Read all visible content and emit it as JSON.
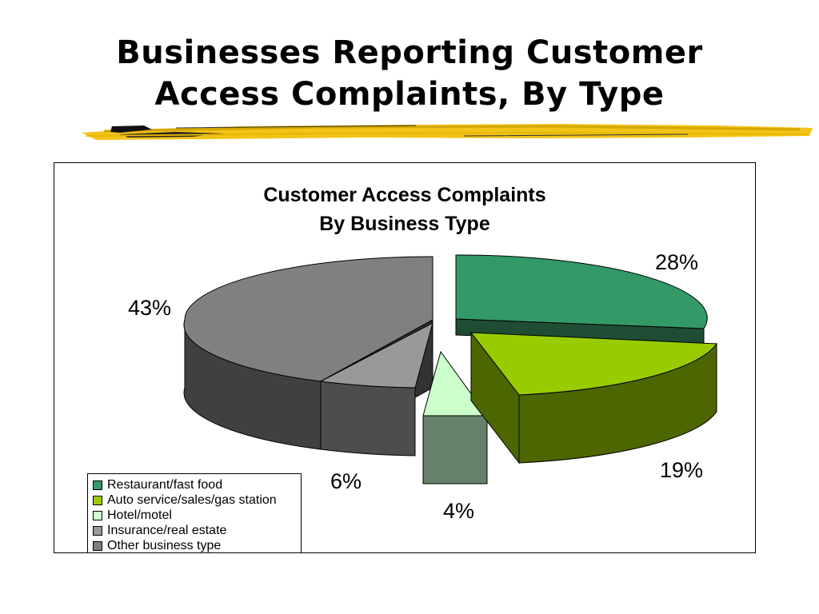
{
  "slide": {
    "title_line1": "Businesses Reporting Customer",
    "title_line2": "Access Complaints, By Type"
  },
  "chart_data": {
    "type": "pie",
    "title_line1": "Customer Access Complaints",
    "title_line2": "By Business Type",
    "categories": [
      "Restaurant/fast food",
      "Auto service/sales/gas station",
      "Hotel/motel",
      "Insurance/real estate",
      "Other business type"
    ],
    "values": [
      28,
      19,
      4,
      6,
      43
    ],
    "labels": [
      "28%",
      "19%",
      "4%",
      "6%",
      "43%"
    ],
    "colors": [
      "#339966",
      "#99cc00",
      "#ccffcc",
      "#999999",
      "#808080"
    ],
    "legend_position": "bottom-left",
    "exploded": true,
    "three_d": true
  }
}
